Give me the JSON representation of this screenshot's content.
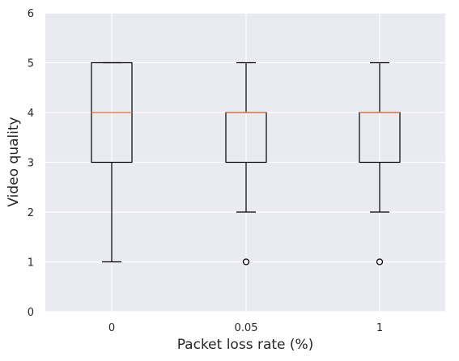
{
  "chart_data": {
    "type": "boxplot",
    "xlabel": "Packet loss rate (%)",
    "ylabel": "Video quality",
    "ylim": [
      0,
      6
    ],
    "yticks": [
      "0",
      "1",
      "2",
      "3",
      "4",
      "5",
      "6"
    ],
    "grid": true,
    "categories": [
      "0",
      "0.05",
      "1"
    ],
    "boxes": [
      {
        "category": "0",
        "whisker_low": 1,
        "q1": 3,
        "median": 4,
        "q3": 5,
        "whisker_high": 5,
        "outliers": []
      },
      {
        "category": "0.05",
        "whisker_low": 2,
        "q1": 3,
        "median": 4,
        "q3": 4,
        "whisker_high": 5,
        "outliers": [
          1
        ]
      },
      {
        "category": "1",
        "whisker_low": 2,
        "q1": 3,
        "median": 4,
        "q3": 4,
        "whisker_high": 5,
        "outliers": [
          1
        ]
      }
    ],
    "colors": {
      "background": "#eaeaf2",
      "grid": "#ffffff",
      "box": "#000000",
      "median": "#dd8452"
    }
  }
}
